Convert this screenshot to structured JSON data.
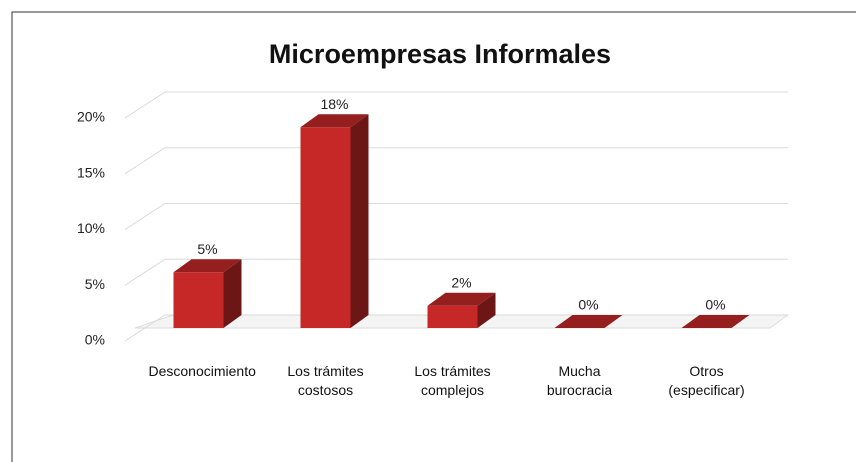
{
  "chart_data": {
    "type": "bar3d",
    "title": "Microempresas Informales",
    "categories": [
      "Desconocimiento",
      "Los trámites costosos",
      "Los trámites complejos",
      "Mucha burocracia",
      "Otros (especificar)"
    ],
    "values": [
      5,
      18,
      2,
      0,
      0
    ],
    "value_labels": [
      "5%",
      "18%",
      "2%",
      "0%",
      "0%"
    ],
    "color": "#c62828",
    "ylim": [
      0,
      20
    ],
    "yticks": [
      {
        "value": 0,
        "label": "0%"
      },
      {
        "value": 5,
        "label": "5%"
      },
      {
        "value": 10,
        "label": "10%"
      },
      {
        "value": 15,
        "label": "15%"
      },
      {
        "value": 20,
        "label": "20%"
      }
    ],
    "grid": true
  }
}
